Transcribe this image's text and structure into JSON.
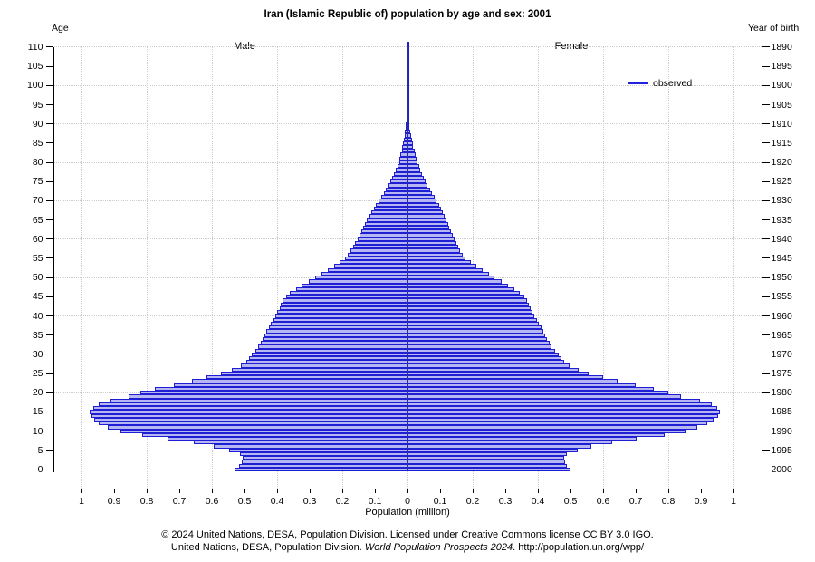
{
  "title": "Iran (Islamic Republic of) population by age and sex: 2001",
  "labels": {
    "age_axis": "Age",
    "year_axis": "Year of birth",
    "male": "Male",
    "female": "Female",
    "x_axis": "Population (million)"
  },
  "legend": {
    "label": "observed"
  },
  "footer": {
    "line1": "© 2024 United Nations, DESA, Population Division. Licensed under Creative Commons license CC BY 3.0 IGO.",
    "line2_prefix": "United Nations, DESA, Population Division. ",
    "line2_italic": "World Population Prospects 2024",
    "line2_suffix": ". http://population.un.org/wpp/"
  },
  "colors": {
    "bar_outline": "#1e1ed2",
    "bar_fill": "#b6b6f2",
    "center_line": "#2d2d9d",
    "legend_line": "#2121e0",
    "grid": "#cccccc",
    "axis": "#000000"
  },
  "chart_data": {
    "type": "bar",
    "subtype": "population-pyramid",
    "title": "Iran (Islamic Republic of) population by age and sex: 2001",
    "xlabel": "Population (million)",
    "x_tick_labels": [
      "1",
      "0.9",
      "0.8",
      "0.7",
      "0.6",
      "0.5",
      "0.4",
      "0.3",
      "0.2",
      "0.1",
      "0",
      "0.1",
      "0.2",
      "0.3",
      "0.4",
      "0.5",
      "0.6",
      "0.7",
      "0.8",
      "0.9",
      "1"
    ],
    "xlim_millions": [
      -1.08,
      1.08
    ],
    "grid": "dotted, vertical every 0.2 million, horizontal every 10 years",
    "legend_entries": [
      "observed"
    ],
    "age_axis": {
      "label": "Age",
      "min": 0,
      "max": 110,
      "tick_step": 5,
      "grid_step": 10
    },
    "year_axis": {
      "label": "Year of birth",
      "ticks_from": 1890,
      "ticks_to": 2000,
      "tick_step": 5,
      "base_year": 2000
    },
    "series": [
      {
        "name": "male",
        "side": "left",
        "values": [
          0.53,
          0.517,
          0.507,
          0.505,
          0.515,
          0.548,
          0.595,
          0.655,
          0.735,
          0.815,
          0.88,
          0.92,
          0.948,
          0.962,
          0.97,
          0.974,
          0.965,
          0.948,
          0.91,
          0.855,
          0.82,
          0.775,
          0.718,
          0.662,
          0.618,
          0.572,
          0.54,
          0.512,
          0.495,
          0.485,
          0.478,
          0.467,
          0.457,
          0.45,
          0.444,
          0.438,
          0.432,
          0.426,
          0.419,
          0.412,
          0.405,
          0.399,
          0.393,
          0.388,
          0.382,
          0.373,
          0.36,
          0.343,
          0.324,
          0.304,
          0.284,
          0.264,
          0.244,
          0.225,
          0.207,
          0.191,
          0.182,
          0.174,
          0.167,
          0.16,
          0.154,
          0.148,
          0.142,
          0.136,
          0.13,
          0.124,
          0.117,
          0.111,
          0.104,
          0.097,
          0.089,
          0.081,
          0.073,
          0.066,
          0.059,
          0.053,
          0.047,
          0.041,
          0.036,
          0.031,
          0.026,
          0.024,
          0.021,
          0.018,
          0.0155,
          0.013,
          0.011,
          0.009,
          0.007,
          0.0055,
          0.0042,
          0.0032,
          0.0024,
          0.0018,
          0.0013,
          0.0009,
          0.0006,
          0.0004,
          0.0003,
          0.0002,
          0.00015,
          0.0001,
          0.0001,
          0,
          0,
          0,
          0,
          0,
          0,
          0,
          0,
          0
        ]
      },
      {
        "name": "female",
        "side": "right",
        "values": [
          0.5,
          0.49,
          0.482,
          0.48,
          0.49,
          0.521,
          0.565,
          0.627,
          0.703,
          0.79,
          0.853,
          0.89,
          0.92,
          0.94,
          0.952,
          0.958,
          0.95,
          0.934,
          0.896,
          0.84,
          0.8,
          0.755,
          0.7,
          0.645,
          0.6,
          0.556,
          0.524,
          0.497,
          0.481,
          0.471,
          0.464,
          0.452,
          0.442,
          0.435,
          0.429,
          0.423,
          0.417,
          0.411,
          0.404,
          0.397,
          0.39,
          0.384,
          0.378,
          0.372,
          0.366,
          0.357,
          0.344,
          0.327,
          0.308,
          0.288,
          0.268,
          0.249,
          0.23,
          0.211,
          0.194,
          0.178,
          0.17,
          0.162,
          0.155,
          0.149,
          0.144,
          0.139,
          0.134,
          0.129,
          0.124,
          0.119,
          0.114,
          0.109,
          0.103,
          0.097,
          0.09,
          0.083,
          0.076,
          0.069,
          0.062,
          0.056,
          0.05,
          0.045,
          0.04,
          0.035,
          0.03,
          0.028,
          0.0245,
          0.021,
          0.018,
          0.0155,
          0.013,
          0.0105,
          0.0085,
          0.0065,
          0.005,
          0.0038,
          0.0029,
          0.0021,
          0.0015,
          0.0011,
          0.0008,
          0.0005,
          0.0004,
          0.0003,
          0.0002,
          0.0001,
          0.0001,
          0,
          0,
          0,
          0,
          0,
          0,
          0,
          0,
          0
        ]
      }
    ]
  }
}
